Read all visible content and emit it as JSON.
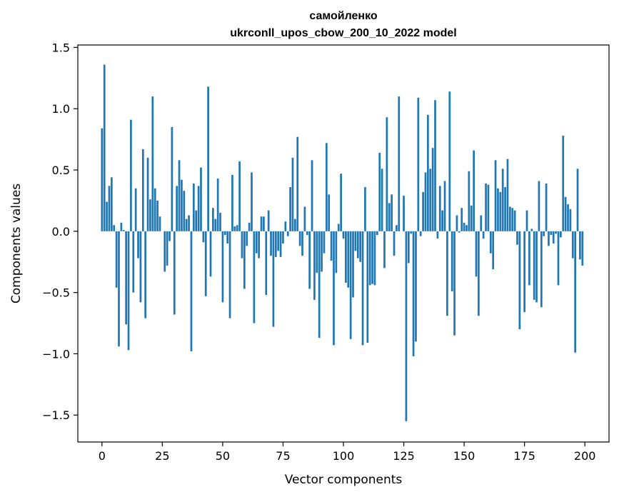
{
  "chart_data": {
    "type": "bar",
    "title": "самойленко",
    "subtitle": "ukrconll_upos_cbow_200_10_2022 model",
    "xlabel": "Vector components",
    "ylabel": "Components values",
    "xlim": [
      -10,
      210
    ],
    "ylim": [
      -1.72,
      1.52
    ],
    "xticks": [
      0,
      25,
      50,
      75,
      100,
      125,
      150,
      175,
      200
    ],
    "yticks": [
      -1.5,
      -1.0,
      -0.5,
      0.0,
      0.5,
      1.0,
      1.5
    ],
    "xtick_labels": [
      "0",
      "25",
      "50",
      "75",
      "100",
      "125",
      "150",
      "175",
      "200"
    ],
    "ytick_labels": [
      "−1.5",
      "−1.0",
      "−0.5",
      "0.0",
      "0.5",
      "1.0",
      "1.5"
    ],
    "grid": false,
    "bar_color": "#1f77b4",
    "values": [
      0.84,
      1.36,
      0.24,
      0.37,
      0.44,
      0.05,
      -0.46,
      -0.94,
      0.07,
      0.01,
      -0.76,
      -0.97,
      0.91,
      -0.5,
      0.35,
      -0.22,
      -0.58,
      0.67,
      -0.71,
      0.6,
      0.26,
      1.1,
      0.35,
      0.25,
      0.12,
      0.0,
      -0.33,
      -0.28,
      -0.08,
      0.85,
      -0.68,
      0.37,
      0.58,
      0.42,
      0.33,
      0.1,
      0.13,
      -0.98,
      0.39,
      0.17,
      0.37,
      0.52,
      -0.09,
      -0.53,
      1.18,
      -0.37,
      0.19,
      0.1,
      0.43,
      0.15,
      -0.58,
      -0.03,
      -0.1,
      -0.71,
      0.46,
      0.04,
      0.05,
      0.57,
      -0.22,
      -0.47,
      -0.12,
      0.07,
      0.48,
      -0.75,
      -0.18,
      -0.22,
      0.12,
      0.12,
      -0.52,
      0.17,
      -0.2,
      -0.78,
      -0.21,
      -0.16,
      -0.21,
      -0.1,
      0.08,
      -0.04,
      0.36,
      0.6,
      0.1,
      0.77,
      -0.12,
      -0.2,
      0.2,
      -0.03,
      -0.47,
      0.58,
      -0.56,
      -0.34,
      -0.87,
      -0.33,
      -0.18,
      0.72,
      0.3,
      -0.24,
      -0.93,
      -0.34,
      0.06,
      0.47,
      -0.06,
      -0.42,
      -0.46,
      -0.88,
      -0.54,
      -0.16,
      -0.22,
      -0.25,
      -0.93,
      0.36,
      -0.91,
      -0.44,
      -0.43,
      -0.44,
      -0.03,
      0.64,
      0.51,
      -0.3,
      0.93,
      0.23,
      0.3,
      -0.2,
      0.05,
      1.1,
      0.0,
      0.29,
      -1.55,
      -0.26,
      -0.02,
      -1.02,
      -0.9,
      1.09,
      -0.04,
      0.32,
      0.48,
      0.95,
      0.51,
      0.68,
      1.07,
      -0.06,
      0.37,
      0.17,
      0.41,
      -0.69,
      1.14,
      -0.49,
      -0.85,
      0.13,
      -0.01,
      0.19,
      0.07,
      0.05,
      0.49,
      0.21,
      0.66,
      -0.37,
      -0.69,
      0.13,
      -0.06,
      0.39,
      0.38,
      -0.18,
      -0.31,
      0.58,
      0.35,
      0.32,
      0.51,
      0.36,
      0.59,
      0.2,
      0.19,
      0.17,
      -0.11,
      -0.8,
      0.0,
      -0.66,
      0.17,
      -0.44,
      0.02,
      -0.56,
      -0.58,
      0.41,
      -0.62,
      -0.04,
      0.39,
      -0.12,
      -0.03,
      -0.1,
      -0.02,
      -0.44,
      -0.05,
      0.78,
      0.28,
      0.22,
      0.18,
      -0.22,
      -0.99,
      0.51,
      -0.23,
      -0.28
    ]
  }
}
